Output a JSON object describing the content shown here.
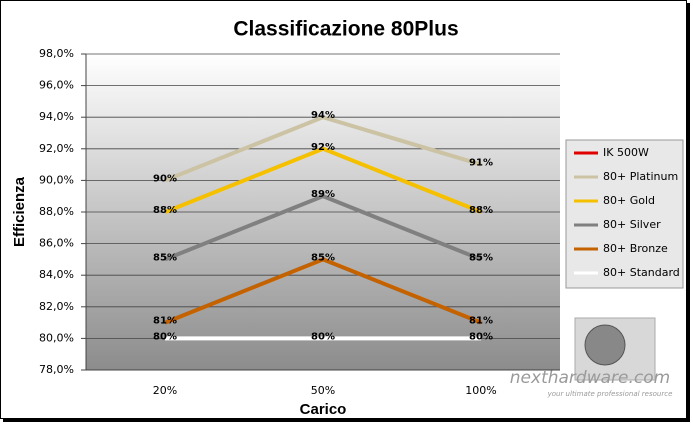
{
  "chart_data": {
    "type": "line",
    "title": "Classificazione 80Plus",
    "x_label": "Carico",
    "y_label": "Efficienza",
    "categories": [
      "20%",
      "50%",
      "100%"
    ],
    "series": [
      {
        "name": "IK 500W",
        "color": "#e00000",
        "values": [
          null,
          null,
          null
        ]
      },
      {
        "name": "80+ Platinum",
        "color": "#cbc3a3",
        "values": [
          90,
          94,
          91
        ],
        "value_labels": [
          "90%",
          "94%",
          "91%"
        ]
      },
      {
        "name": "80+ Gold",
        "color": "#f5c000",
        "values": [
          88,
          92,
          88
        ],
        "value_labels": [
          "88%",
          "92%",
          "88%"
        ]
      },
      {
        "name": "80+ Silver",
        "color": "#808080",
        "values": [
          85,
          89,
          85
        ],
        "value_labels": [
          "85%",
          "89%",
          "85%"
        ]
      },
      {
        "name": "80+ Bronze",
        "color": "#c46200",
        "values": [
          81,
          85,
          81
        ],
        "value_labels": [
          "81%",
          "85%",
          "81%"
        ]
      },
      {
        "name": "80+ Standard",
        "color": "#ffffff",
        "values": [
          80,
          80,
          80
        ],
        "value_labels": [
          "80%",
          "80%",
          "80%"
        ]
      }
    ],
    "ylim": [
      78,
      98
    ],
    "yticks": [
      {
        "value": 78,
        "label": "78,0%"
      },
      {
        "value": 80,
        "label": "80,0%"
      },
      {
        "value": 82,
        "label": "82,0%"
      },
      {
        "value": 84,
        "label": "84,0%"
      },
      {
        "value": 86,
        "label": "86,0%"
      },
      {
        "value": 88,
        "label": "88,0%"
      },
      {
        "value": 90,
        "label": "90,0%"
      },
      {
        "value": 92,
        "label": "92,0%"
      },
      {
        "value": 94,
        "label": "94,0%"
      },
      {
        "value": 96,
        "label": "96,0%"
      },
      {
        "value": 98,
        "label": "98,0%"
      }
    ],
    "grid": true,
    "legend": "right",
    "watermark": "nexthardware.com",
    "watermark_tagline": "your ultimate professional resource"
  }
}
